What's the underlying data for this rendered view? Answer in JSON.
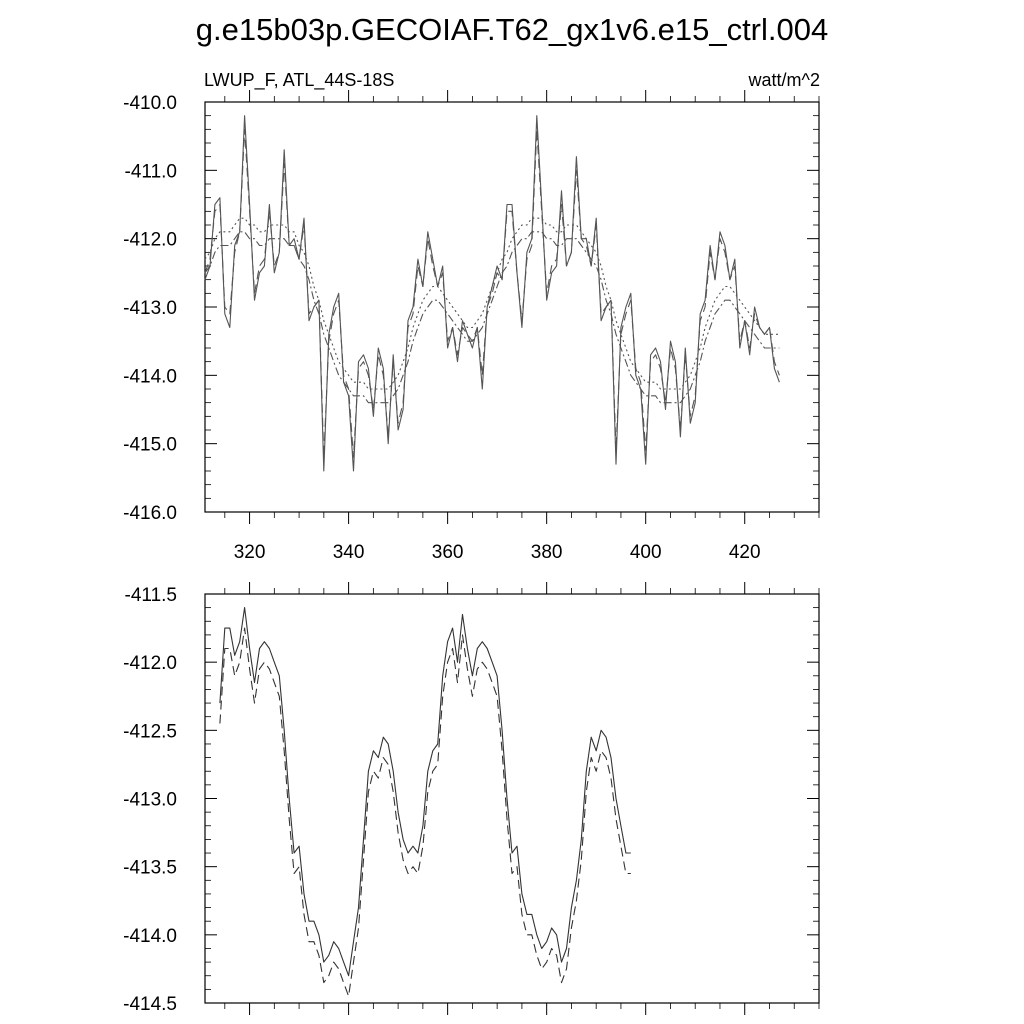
{
  "title": "g.e15b03p.GECOIAF.T62_gx1v6.e15_ctrl.004",
  "chart_data": [
    {
      "type": "line",
      "subtitle_left": "LWUP_F, ATL_44S-18S",
      "subtitle_right": "watt/m^2",
      "xlim": [
        311,
        435
      ],
      "ylim": [
        -416,
        -410
      ],
      "x_ticks": [
        320,
        340,
        360,
        380,
        400,
        420
      ],
      "x_tick_labels": [
        "320",
        "340",
        "360",
        "380",
        "400",
        "420"
      ],
      "y_ticks": [
        -416,
        -415,
        -414,
        -413,
        -412,
        -411,
        -410
      ],
      "y_tick_labels": [
        "-416.0",
        "-415.0",
        "-414.0",
        "-413.0",
        "-412.0",
        "-411.0",
        "-410.0"
      ],
      "grid": false,
      "x_start": 311,
      "x_step": 1,
      "series": [
        {
          "style": "solid",
          "color": "#555555",
          "values": [
            -412.6,
            -412.4,
            -411.5,
            -411.4,
            -413.1,
            -413.3,
            -412.1,
            -411.9,
            -410.2,
            -411.5,
            -412.9,
            -412.5,
            -412.4,
            -411.5,
            -412.5,
            -412.2,
            -410.7,
            -412.1,
            -412.0,
            -412.3,
            -411.7,
            -413.2,
            -413.0,
            -412.9,
            -415.4,
            -413.4,
            -413.0,
            -412.8,
            -414.1,
            -414.3,
            -415.4,
            -413.8,
            -413.7,
            -413.9,
            -414.6,
            -413.6,
            -413.9,
            -415.0,
            -413.7,
            -414.8,
            -414.5,
            -413.2,
            -413.0,
            -412.3,
            -412.7,
            -411.9,
            -412.3,
            -412.7,
            -412.4,
            -413.6,
            -413.3,
            -413.8,
            -413.2,
            -413.4,
            -413.6,
            -413.3,
            -414.2,
            -413.0,
            -412.7,
            -412.4,
            -412.6,
            -411.5,
            -411.5,
            -412.5,
            -413.3,
            -412.2,
            -412.0,
            -410.2,
            -411.5,
            -412.9,
            -412.5,
            -412.4,
            -411.3,
            -412.4,
            -412.2,
            -410.8,
            -412.0,
            -412.0,
            -412.4,
            -411.7,
            -413.2,
            -413.0,
            -412.9,
            -415.3,
            -413.3,
            -413.0,
            -412.8,
            -414.0,
            -414.2,
            -415.3,
            -413.7,
            -413.6,
            -413.8,
            -414.5,
            -413.5,
            -413.8,
            -414.9,
            -413.6,
            -414.7,
            -414.4,
            -413.1,
            -412.9,
            -412.1,
            -412.6,
            -411.9,
            -412.1,
            -412.6,
            -412.3,
            -413.6,
            -413.2,
            -413.7,
            -413.0,
            -413.3,
            -413.4,
            -413.3,
            -413.9,
            -414.1
          ]
        },
        {
          "style": "dashed",
          "color": "#555555",
          "values": [
            -412.5,
            -412.3,
            -411.6,
            -411.5,
            -413.0,
            -413.1,
            -412.2,
            -411.9,
            -410.4,
            -411.6,
            -412.8,
            -412.4,
            -412.3,
            -411.6,
            -412.4,
            -412.2,
            -410.9,
            -412.1,
            -412.1,
            -412.3,
            -411.8,
            -413.1,
            -413.0,
            -412.9,
            -415.2,
            -413.5,
            -413.1,
            -412.9,
            -414.0,
            -414.2,
            -415.2,
            -413.9,
            -413.8,
            -414.0,
            -414.5,
            -413.7,
            -414.0,
            -414.9,
            -413.8,
            -414.7,
            -414.4,
            -413.3,
            -413.1,
            -412.4,
            -412.7,
            -412.0,
            -412.4,
            -412.7,
            -412.5,
            -413.5,
            -413.3,
            -413.7,
            -413.3,
            -413.4,
            -413.5,
            -413.3,
            -414.0,
            -413.0,
            -412.8,
            -412.5,
            -412.6,
            -411.6,
            -411.6,
            -412.5,
            -413.2,
            -412.3,
            -412.1,
            -410.4,
            -411.6,
            -412.8,
            -412.4,
            -412.3,
            -411.5,
            -412.4,
            -412.2,
            -411.0,
            -412.0,
            -412.1,
            -412.4,
            -411.8,
            -413.1,
            -413.0,
            -412.9,
            -415.1,
            -413.4,
            -413.1,
            -412.9,
            -413.9,
            -414.1,
            -415.1,
            -413.8,
            -413.7,
            -413.9,
            -414.4,
            -413.6,
            -413.9,
            -414.8,
            -413.7,
            -414.6,
            -414.3,
            -413.2,
            -413.0,
            -412.2,
            -412.6,
            -412.0,
            -412.2,
            -412.6,
            -412.4,
            -413.5,
            -413.2,
            -413.6,
            -413.1,
            -413.3,
            -413.4,
            -413.3,
            -413.8,
            -414.0
          ]
        },
        {
          "style": "dotted",
          "color": "#555555",
          "values": [
            -412.3,
            -412.2,
            -412.0,
            -411.9,
            -411.9,
            -411.9,
            -411.8,
            -411.7,
            -411.7,
            -411.8,
            -411.8,
            -411.9,
            -411.9,
            -411.8,
            -411.8,
            -411.8,
            -411.8,
            -411.9,
            -411.9,
            -412.1,
            -412.2,
            -412.4,
            -412.7,
            -412.9,
            -413.2,
            -413.4,
            -413.6,
            -413.8,
            -413.9,
            -414.0,
            -414.1,
            -414.1,
            -414.1,
            -414.2,
            -414.2,
            -414.2,
            -414.2,
            -414.2,
            -414.1,
            -414.0,
            -413.8,
            -413.6,
            -413.3,
            -413.1,
            -412.9,
            -412.8,
            -412.7,
            -412.7,
            -412.8,
            -412.9,
            -413.0,
            -413.1,
            -413.2,
            -413.3,
            -413.3,
            -413.2,
            -413.1,
            -412.9,
            -412.7,
            -412.5,
            -412.3,
            -412.2,
            -412.0,
            -411.9,
            -411.8,
            -411.8,
            -411.7,
            -411.7,
            -411.7,
            -411.8,
            -411.8,
            -411.9,
            -411.9,
            -411.8,
            -411.8,
            -411.8,
            -411.9,
            -412.0,
            -412.1,
            -412.2,
            -412.4,
            -412.7,
            -412.9,
            -413.2,
            -413.4,
            -413.6,
            -413.8,
            -413.9,
            -414.0,
            -414.1,
            -414.1,
            -414.1,
            -414.2,
            -414.2,
            -414.2,
            -414.2,
            -414.2,
            -414.1,
            -414.0,
            -413.8,
            -413.6,
            -413.3,
            -413.1,
            -412.9,
            -412.8,
            -412.7,
            -412.7,
            -412.8,
            -412.9,
            -413.0,
            -413.1,
            -413.2,
            -413.3,
            -413.4,
            -413.4,
            -413.4,
            -413.4
          ]
        },
        {
          "style": "dashdot",
          "color": "#555555",
          "values": [
            -412.5,
            -412.4,
            -412.2,
            -412.1,
            -412.1,
            -412.1,
            -412.0,
            -411.9,
            -411.9,
            -412.0,
            -412.0,
            -412.1,
            -412.1,
            -412.0,
            -412.0,
            -412.0,
            -412.0,
            -412.1,
            -412.1,
            -412.3,
            -412.4,
            -412.6,
            -412.9,
            -413.1,
            -413.4,
            -413.6,
            -413.8,
            -414.0,
            -414.1,
            -414.2,
            -414.3,
            -414.3,
            -414.3,
            -414.4,
            -414.4,
            -414.4,
            -414.4,
            -414.4,
            -414.3,
            -414.2,
            -414.0,
            -413.8,
            -413.5,
            -413.3,
            -413.1,
            -413.0,
            -412.9,
            -412.9,
            -413.0,
            -413.1,
            -413.2,
            -413.3,
            -413.4,
            -413.5,
            -413.5,
            -413.4,
            -413.3,
            -413.1,
            -412.9,
            -412.7,
            -412.5,
            -412.4,
            -412.2,
            -412.1,
            -412.0,
            -412.0,
            -411.9,
            -411.9,
            -411.9,
            -412.0,
            -412.0,
            -412.1,
            -412.1,
            -412.0,
            -412.0,
            -412.0,
            -412.1,
            -412.2,
            -412.3,
            -412.4,
            -412.6,
            -412.9,
            -413.1,
            -413.4,
            -413.6,
            -413.8,
            -414.0,
            -414.1,
            -414.2,
            -414.3,
            -414.3,
            -414.3,
            -414.4,
            -414.4,
            -414.4,
            -414.4,
            -414.4,
            -414.3,
            -414.2,
            -414.0,
            -413.8,
            -413.5,
            -413.3,
            -413.1,
            -413.0,
            -412.9,
            -412.9,
            -413.0,
            -413.1,
            -413.2,
            -413.3,
            -413.4,
            -413.5,
            -413.6,
            -413.6,
            -413.6,
            -413.6
          ]
        }
      ]
    },
    {
      "type": "line",
      "xlim": [
        311,
        435
      ],
      "ylim": [
        -414.5,
        -411.5
      ],
      "x_ticks": [
        320,
        340,
        360,
        380,
        400,
        420
      ],
      "x_tick_labels": [
        "",
        "",
        "",
        "",
        "",
        ""
      ],
      "y_ticks": [
        -414.5,
        -414.0,
        -413.5,
        -413.0,
        -412.5,
        -412.0,
        -411.5
      ],
      "y_tick_labels": [
        "-414.5",
        "-414.0",
        "-413.5",
        "-413.0",
        "-412.5",
        "-412.0",
        "-411.5"
      ],
      "grid": false,
      "x_start": 314,
      "x_step": 1,
      "series": [
        {
          "style": "solid",
          "color": "#333333",
          "values": [
            -412.3,
            -411.75,
            -411.75,
            -411.95,
            -411.85,
            -411.6,
            -411.9,
            -412.15,
            -411.9,
            -411.85,
            -411.9,
            -412.0,
            -412.1,
            -412.5,
            -413.0,
            -413.4,
            -413.35,
            -413.7,
            -413.9,
            -413.9,
            -414.0,
            -414.2,
            -414.15,
            -414.05,
            -414.1,
            -414.2,
            -414.3,
            -414.05,
            -413.8,
            -413.3,
            -412.8,
            -412.65,
            -412.7,
            -412.55,
            -412.6,
            -412.8,
            -413.1,
            -413.3,
            -413.4,
            -413.35,
            -413.4,
            -413.2,
            -412.8,
            -412.65,
            -412.6,
            -412.1,
            -411.85,
            -411.75,
            -412.0,
            -411.65,
            -411.9,
            -412.1,
            -411.9,
            -411.85,
            -411.9,
            -412.0,
            -412.1,
            -412.5,
            -413.0,
            -413.4,
            -413.35,
            -413.7,
            -413.85,
            -413.85,
            -414.0,
            -414.1,
            -414.05,
            -413.95,
            -414.0,
            -414.2,
            -414.1,
            -413.8,
            -413.6,
            -413.3,
            -412.8,
            -412.55,
            -412.65,
            -412.5,
            -412.55,
            -412.7,
            -413.0,
            -413.2,
            -413.4,
            -413.4
          ]
        },
        {
          "style": "dashed",
          "color": "#333333",
          "values": [
            -412.45,
            -411.9,
            -411.9,
            -412.1,
            -412.0,
            -411.75,
            -412.05,
            -412.3,
            -412.05,
            -412.0,
            -412.05,
            -412.15,
            -412.25,
            -412.65,
            -413.15,
            -413.55,
            -413.5,
            -413.85,
            -414.05,
            -414.05,
            -414.15,
            -414.35,
            -414.3,
            -414.2,
            -414.25,
            -414.35,
            -414.45,
            -414.2,
            -413.95,
            -413.45,
            -412.95,
            -412.8,
            -412.85,
            -412.7,
            -412.75,
            -412.95,
            -413.25,
            -413.45,
            -413.55,
            -413.5,
            -413.55,
            -413.35,
            -412.95,
            -412.8,
            -412.75,
            -412.25,
            -412.0,
            -411.9,
            -412.15,
            -411.8,
            -412.05,
            -412.25,
            -412.05,
            -412.0,
            -412.05,
            -412.15,
            -412.25,
            -412.65,
            -413.15,
            -413.55,
            -413.5,
            -413.85,
            -414.0,
            -414.0,
            -414.15,
            -414.25,
            -414.2,
            -414.1,
            -414.15,
            -414.35,
            -414.25,
            -413.95,
            -413.75,
            -413.45,
            -412.95,
            -412.7,
            -412.8,
            -412.65,
            -412.7,
            -412.85,
            -413.15,
            -413.35,
            -413.55,
            -413.55
          ]
        }
      ]
    }
  ]
}
